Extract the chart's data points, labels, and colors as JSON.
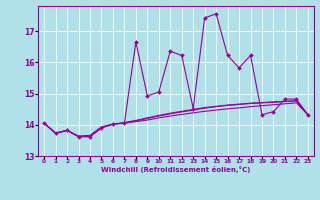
{
  "xlabel": "Windchill (Refroidissement éolien,°C)",
  "bg_color": "#b0e0e8",
  "line_color": "#990099",
  "grid_color": "#ffffff",
  "xlim": [
    -0.5,
    23.5
  ],
  "ylim": [
    13.0,
    17.8
  ],
  "yticks": [
    13,
    14,
    15,
    16,
    17
  ],
  "xticks": [
    0,
    1,
    2,
    3,
    4,
    5,
    6,
    7,
    8,
    9,
    10,
    11,
    12,
    13,
    14,
    15,
    16,
    17,
    18,
    19,
    20,
    21,
    22,
    23
  ],
  "line1_x": [
    0,
    1,
    2,
    3,
    4,
    5,
    6,
    7,
    8,
    9,
    10,
    11,
    12,
    13,
    14,
    15,
    16,
    17,
    18,
    19,
    20,
    21,
    22,
    23
  ],
  "line1_y": [
    14.05,
    13.73,
    13.82,
    13.62,
    13.62,
    13.9,
    14.02,
    14.05,
    16.65,
    14.92,
    15.05,
    16.35,
    16.22,
    14.52,
    17.42,
    17.55,
    16.22,
    15.82,
    16.22,
    14.32,
    14.42,
    14.82,
    14.82,
    14.32
  ],
  "line2_x": [
    0,
    1,
    2,
    3,
    4,
    5,
    6,
    7,
    8,
    9,
    10,
    11,
    12,
    13,
    14,
    15,
    16,
    17,
    18,
    19,
    20,
    21,
    22,
    23
  ],
  "line2_y": [
    14.05,
    13.73,
    13.82,
    13.62,
    13.62,
    13.9,
    14.02,
    14.05,
    14.1,
    14.15,
    14.22,
    14.28,
    14.33,
    14.38,
    14.43,
    14.47,
    14.51,
    14.54,
    14.58,
    14.61,
    14.64,
    14.67,
    14.7,
    14.32
  ],
  "line3_x": [
    0,
    1,
    2,
    3,
    4,
    5,
    6,
    7,
    8,
    9,
    10,
    11,
    12,
    13,
    14,
    15,
    16,
    17,
    18,
    19,
    20,
    21,
    22,
    23
  ],
  "line3_y": [
    14.05,
    13.73,
    13.82,
    13.62,
    13.64,
    13.92,
    14.02,
    14.06,
    14.12,
    14.2,
    14.28,
    14.35,
    14.41,
    14.47,
    14.53,
    14.58,
    14.62,
    14.65,
    14.68,
    14.7,
    14.72,
    14.74,
    14.76,
    14.32
  ],
  "line4_x": [
    0,
    1,
    2,
    3,
    4,
    5,
    6,
    7,
    8,
    9,
    10,
    11,
    12,
    13,
    14,
    15,
    16,
    17,
    18,
    19,
    20,
    21,
    22,
    23
  ],
  "line4_y": [
    14.05,
    13.73,
    13.82,
    13.64,
    13.66,
    13.93,
    14.02,
    14.07,
    14.14,
    14.22,
    14.3,
    14.37,
    14.43,
    14.49,
    14.55,
    14.59,
    14.63,
    14.66,
    14.69,
    14.71,
    14.73,
    14.75,
    14.77,
    14.32
  ]
}
